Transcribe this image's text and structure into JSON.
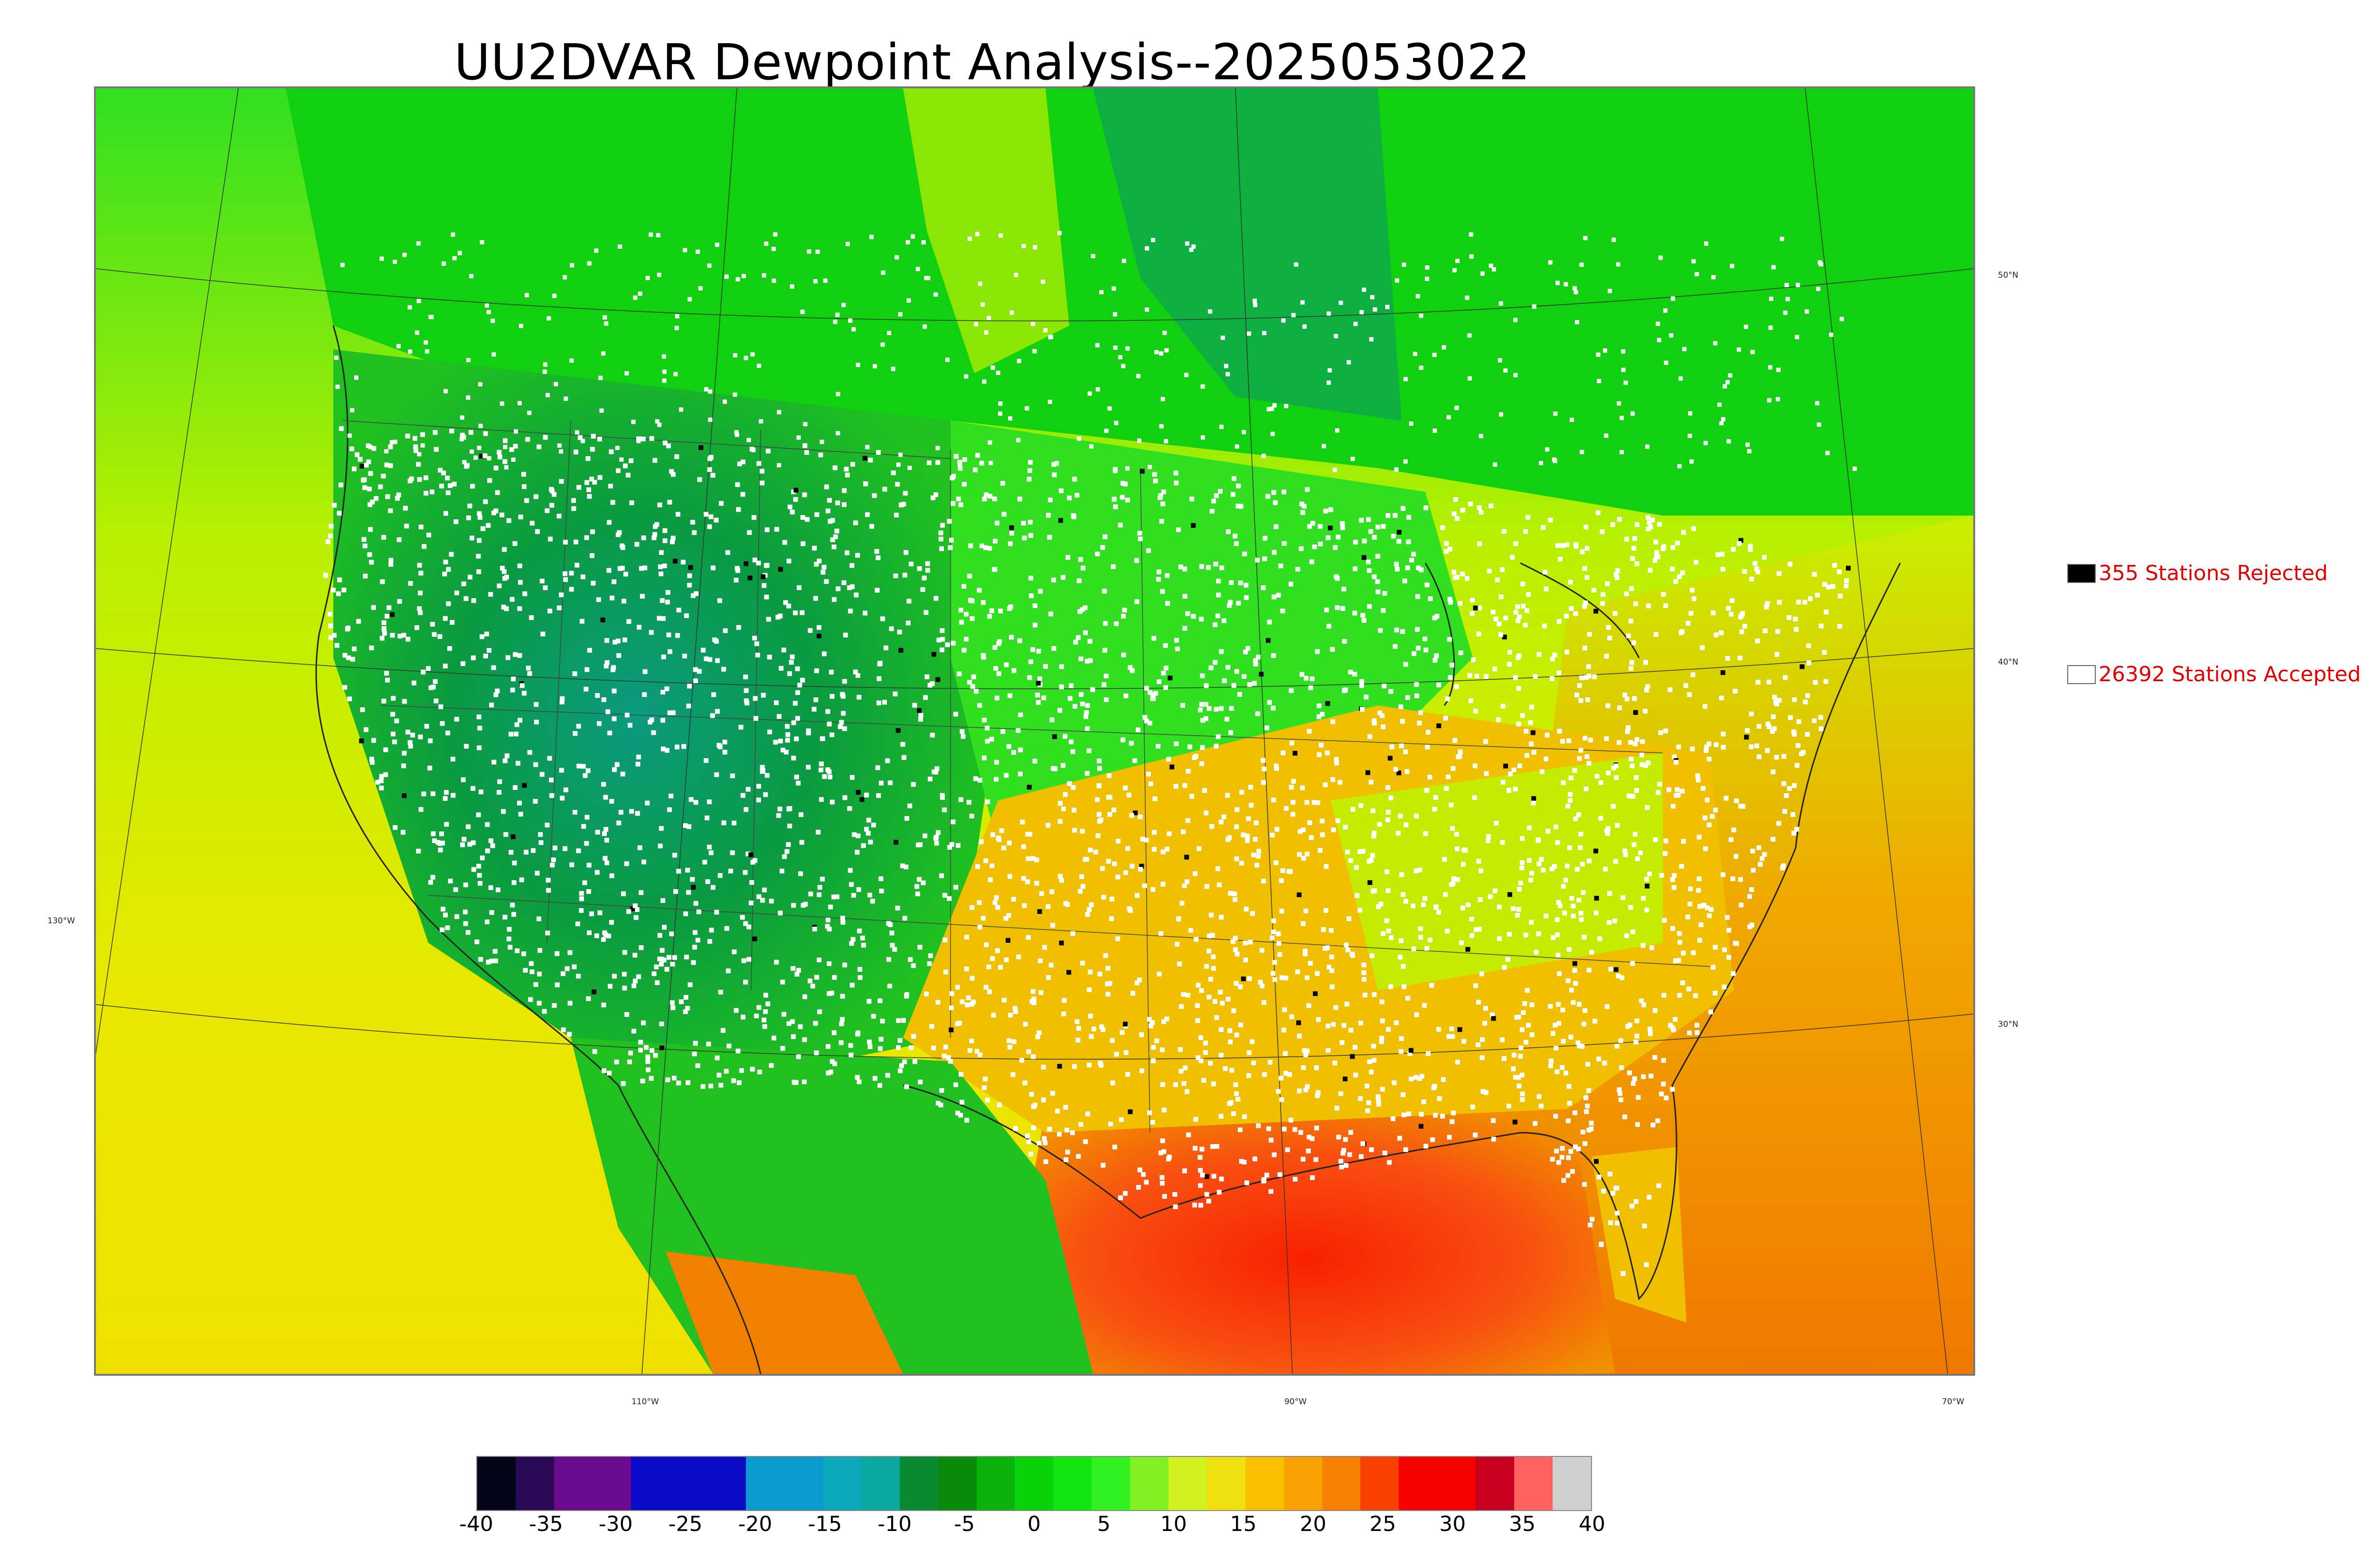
{
  "title": "UU2DVAR Dewpoint Analysis--2025053022",
  "axis_labels": {
    "lon": [
      "110°W",
      "90°W",
      "70°W"
    ],
    "lat": [
      "50°N",
      "40°N",
      "30°N"
    ],
    "lon_left": "130°W"
  },
  "legend": {
    "rejected": {
      "label": "355 Stations Rejected",
      "color": "#000000"
    },
    "accepted": {
      "label": "26392 Stations Accepted",
      "color": "#ffffff"
    }
  },
  "colorbar": {
    "ticks": [
      "-40",
      "-35",
      "-30",
      "-25",
      "-20",
      "-15",
      "-10",
      "-5",
      "0",
      "5",
      "10",
      "15",
      "20",
      "25",
      "30",
      "35",
      "40"
    ],
    "colors": [
      "#050518",
      "#2a0a55",
      "#6a0a8f",
      "#6a0a8f",
      "#0a0ac8",
      "#0a0ac8",
      "#0a0ac8",
      "#0a9ad0",
      "#0a9ad0",
      "#0aa8b8",
      "#0aa8a0",
      "#0a8a30",
      "#0a8a0a",
      "#0ab20a",
      "#0ad20a",
      "#10e610",
      "#30f020",
      "#80f020",
      "#d0f020",
      "#f0e010",
      "#f8c000",
      "#f8a000",
      "#f88000",
      "#f84000",
      "#f80000",
      "#f80000",
      "#c80020",
      "#ff6060",
      "#d0d0d0"
    ]
  },
  "map": {
    "field": "dewpoint",
    "regions": [
      {
        "name": "pacific-ocean",
        "color": "#d4e800"
      },
      {
        "name": "atlantic-ocean",
        "color": "#f0a000"
      },
      {
        "name": "gulf-of-mexico",
        "color": "#f85010"
      },
      {
        "name": "canada",
        "color": "#10d010"
      },
      {
        "name": "rockies",
        "color": "#0a9a40"
      },
      {
        "name": "plains",
        "color": "#30e020"
      },
      {
        "name": "southeast",
        "color": "#f0b000"
      },
      {
        "name": "mexico",
        "color": "#20c020"
      }
    ]
  }
}
